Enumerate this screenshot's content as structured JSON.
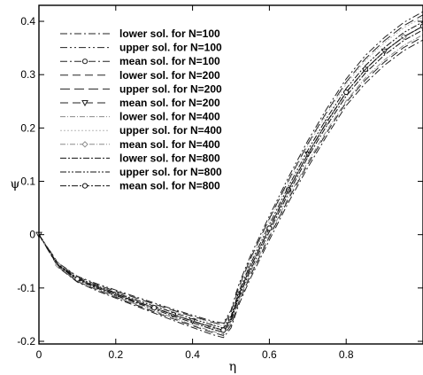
{
  "chart_data": {
    "type": "line",
    "xlabel": "η",
    "ylabel": "ψ",
    "xlim": [
      0,
      1
    ],
    "ylim": [
      -0.205,
      0.43
    ],
    "x_ticks": [
      {
        "value": 0,
        "label": "0"
      },
      {
        "value": 0.2,
        "label": "0.2"
      },
      {
        "value": 0.4,
        "label": "0.4"
      },
      {
        "value": 0.6,
        "label": "0.6"
      },
      {
        "value": 0.8,
        "label": "0.8"
      }
    ],
    "y_ticks": [
      {
        "value": -0.2,
        "label": "-0.2"
      },
      {
        "value": -0.1,
        "label": "-0.1"
      },
      {
        "value": 0,
        "label": "0"
      },
      {
        "value": 0.1,
        "label": "0.1"
      },
      {
        "value": 0.2,
        "label": "0.2"
      },
      {
        "value": 0.3,
        "label": "0.3"
      },
      {
        "value": 0.4,
        "label": "0.4"
      }
    ],
    "grid": false,
    "legend_position": "top-left",
    "x": [
      0,
      0.05,
      0.1,
      0.15,
      0.2,
      0.25,
      0.3,
      0.35,
      0.4,
      0.45,
      0.48,
      0.5,
      0.52,
      0.55,
      0.6,
      0.65,
      0.7,
      0.75,
      0.8,
      0.85,
      0.9,
      0.95,
      1.0
    ],
    "series": [
      {
        "name": "lower sol. for N=100",
        "dash": "8,3,2,3",
        "marker": "none",
        "color": "#222222",
        "values": [
          0,
          -0.061,
          -0.089,
          -0.105,
          -0.119,
          -0.133,
          -0.147,
          -0.161,
          -0.174,
          -0.187,
          -0.193,
          -0.175,
          -0.132,
          -0.083,
          -0.01,
          0.061,
          0.126,
          0.186,
          0.242,
          0.284,
          0.318,
          0.345,
          0.365
        ]
      },
      {
        "name": "upper sol. for N=100",
        "dash": "8,3,2,3,2,3",
        "marker": "none",
        "color": "#222222",
        "values": [
          0,
          -0.053,
          -0.078,
          -0.092,
          -0.104,
          -0.116,
          -0.128,
          -0.14,
          -0.151,
          -0.162,
          -0.166,
          -0.142,
          -0.094,
          -0.041,
          0.035,
          0.108,
          0.176,
          0.237,
          0.292,
          0.336,
          0.37,
          0.398,
          0.418
        ]
      },
      {
        "name": "mean sol. for N=100",
        "dash": "8,3,2,3",
        "marker": "circle",
        "color": "#222222",
        "values": [
          0,
          -0.057,
          -0.083,
          -0.098,
          -0.111,
          -0.124,
          -0.137,
          -0.15,
          -0.162,
          -0.174,
          -0.179,
          -0.158,
          -0.113,
          -0.062,
          0.012,
          0.084,
          0.151,
          0.211,
          0.267,
          0.31,
          0.344,
          0.371,
          0.391
        ]
      },
      {
        "name": "lower sol. for N=200",
        "dash": "9,5",
        "marker": "none",
        "color": "#222222",
        "values": [
          0,
          -0.06,
          -0.088,
          -0.103,
          -0.117,
          -0.131,
          -0.145,
          -0.158,
          -0.171,
          -0.183,
          -0.189,
          -0.17,
          -0.127,
          -0.078,
          -0.004,
          0.067,
          0.132,
          0.192,
          0.248,
          0.29,
          0.324,
          0.351,
          0.371
        ]
      },
      {
        "name": "upper sol. for N=200",
        "dash": "11,5",
        "marker": "none",
        "color": "#222222",
        "values": [
          0,
          -0.054,
          -0.079,
          -0.094,
          -0.106,
          -0.118,
          -0.13,
          -0.142,
          -0.153,
          -0.164,
          -0.169,
          -0.146,
          -0.099,
          -0.046,
          0.03,
          0.102,
          0.17,
          0.231,
          0.286,
          0.33,
          0.364,
          0.392,
          0.412
        ]
      },
      {
        "name": "mean sol. for N=200",
        "dash": "9,5",
        "marker": "triangle",
        "color": "#222222",
        "values": [
          0,
          -0.057,
          -0.083,
          -0.098,
          -0.112,
          -0.125,
          -0.138,
          -0.15,
          -0.162,
          -0.174,
          -0.179,
          -0.158,
          -0.113,
          -0.062,
          0.013,
          0.085,
          0.151,
          0.212,
          0.267,
          0.31,
          0.344,
          0.371,
          0.391
        ]
      },
      {
        "name": "lower sol. for N=400",
        "dash": "6,2,1,2",
        "marker": "none",
        "color": "#8a8a8a",
        "values": [
          0,
          -0.059,
          -0.087,
          -0.102,
          -0.116,
          -0.13,
          -0.143,
          -0.156,
          -0.169,
          -0.181,
          -0.186,
          -0.166,
          -0.123,
          -0.074,
          -0.001,
          0.071,
          0.136,
          0.196,
          0.251,
          0.294,
          0.328,
          0.355,
          0.375
        ]
      },
      {
        "name": "upper sol. for N=400",
        "dash": "2,2",
        "marker": "none",
        "color": "#b8b8b8",
        "values": [
          0,
          -0.055,
          -0.08,
          -0.095,
          -0.108,
          -0.12,
          -0.132,
          -0.144,
          -0.155,
          -0.166,
          -0.172,
          -0.15,
          -0.103,
          -0.05,
          0.026,
          0.098,
          0.166,
          0.227,
          0.282,
          0.326,
          0.36,
          0.388,
          0.408
        ]
      },
      {
        "name": "mean sol. for N=400",
        "dash": "6,2,1,2",
        "marker": "diamond",
        "color": "#8a8a8a",
        "values": [
          0,
          -0.057,
          -0.083,
          -0.098,
          -0.112,
          -0.125,
          -0.138,
          -0.15,
          -0.162,
          -0.173,
          -0.179,
          -0.158,
          -0.113,
          -0.062,
          0.012,
          0.084,
          0.151,
          0.211,
          0.266,
          0.31,
          0.344,
          0.371,
          0.391
        ]
      },
      {
        "name": "lower sol. for N=800",
        "dash": "7,2,2,2",
        "marker": "none",
        "color": "#111111",
        "values": [
          0,
          -0.058,
          -0.085,
          -0.1,
          -0.114,
          -0.127,
          -0.14,
          -0.153,
          -0.165,
          -0.177,
          -0.183,
          -0.162,
          -0.118,
          -0.068,
          0.006,
          0.078,
          0.145,
          0.205,
          0.26,
          0.303,
          0.337,
          0.364,
          0.384
        ]
      },
      {
        "name": "upper sol. for N=800",
        "dash": "7,2,2,2,2,2",
        "marker": "none",
        "color": "#111111",
        "values": [
          0,
          -0.056,
          -0.081,
          -0.096,
          -0.109,
          -0.122,
          -0.134,
          -0.146,
          -0.158,
          -0.169,
          -0.175,
          -0.154,
          -0.108,
          -0.056,
          0.019,
          0.091,
          0.158,
          0.219,
          0.274,
          0.317,
          0.351,
          0.379,
          0.399
        ]
      },
      {
        "name": "mean sol. for N=800",
        "dash": "7,2,2,2",
        "marker": "circle",
        "color": "#111111",
        "values": [
          0,
          -0.057,
          -0.083,
          -0.098,
          -0.111,
          -0.125,
          -0.137,
          -0.15,
          -0.162,
          -0.173,
          -0.179,
          -0.158,
          -0.113,
          -0.062,
          0.012,
          0.084,
          0.151,
          0.212,
          0.267,
          0.31,
          0.344,
          0.371,
          0.391
        ]
      }
    ]
  }
}
